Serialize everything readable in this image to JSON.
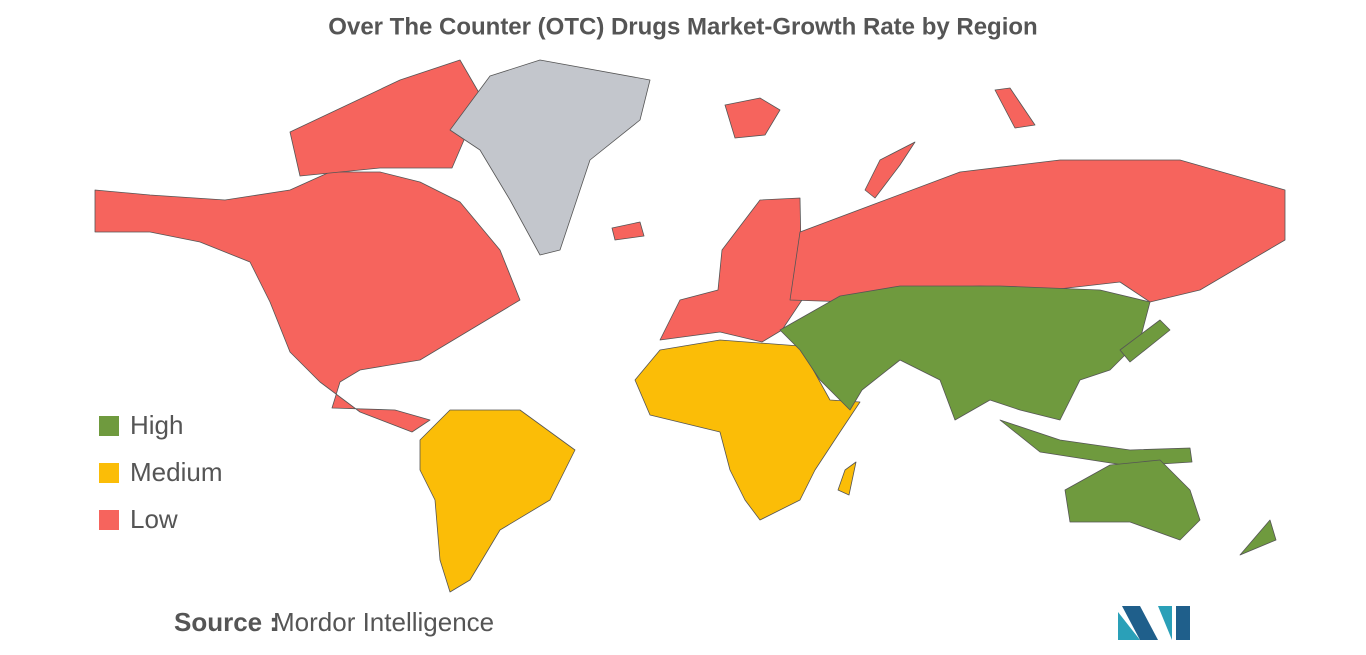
{
  "chart_data": {
    "type": "choropleth",
    "title": "Over The Counter (OTC) Drugs Market-Growth Rate by Region",
    "legend": [
      {
        "label": "High",
        "color": "#6f9a3e"
      },
      {
        "label": "Medium",
        "color": "#fbbd07"
      },
      {
        "label": "Low",
        "color": "#f6645d"
      }
    ],
    "no_data_color": "#c3c6cc",
    "source_label": "Source :",
    "source": "Mordor Intelligence"
  }
}
